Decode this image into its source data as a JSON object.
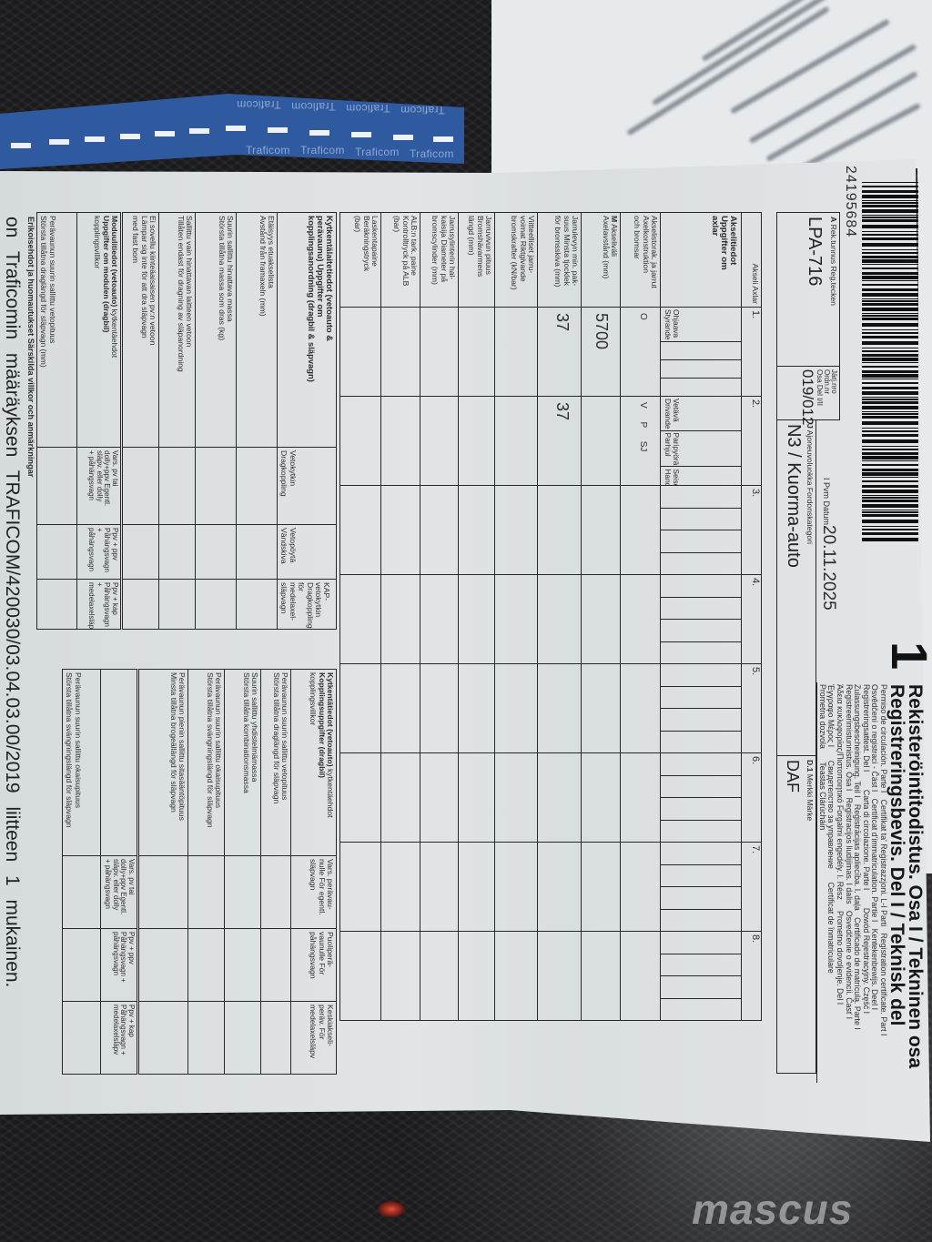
{
  "banner": {
    "text": "Traficom",
    "color": "#2f5aa0"
  },
  "header": {
    "part_number": "1",
    "title_fi": "Rekisteröintitodistus. Osa I / Tekninen osa",
    "title_sv": "Registreringsbevis. Del I / Teknisk del",
    "translations": [
      "Permiso de circulación. Parte I   Certifikat ta' Reġistrazzjoni. L-I Parti   Registration certificate. Part I",
      "Osvědčení o registraci - Část I   Certificat d'immatriculation. Partie I   Kentekenbewijs. Deel I",
      "Registreringsattest. Del I        Carta di circolazione. Parte I        Dowód Rejestracyjny. Część I",
      "Zulassungsbescheinigung. Teil I   Reģistrācijas apliecība. I. daļa   Certificado de matrícula. Parte I",
      "Registreerimistunnistus. Osa I   Registracijos liudijimas. I dalis   Osvedčenie o evidencii. Časť I",
      "Άδεια κυκλοφορίας/Πιστοποιητικό Forgalmi engedély. I. Rész     Prometno dovoljenje. Del I",
      "Έγγραφο Μέρος I      Свидетелство за управление      Certificat de înmatriculare",
      "Prometna dozvola      Teastas Clárúcháin"
    ],
    "serial_number": "24195684",
    "date_label": "I Pvm Datum",
    "date": "20.11.2025"
  },
  "id_fields": {
    "registration": {
      "code": "A",
      "label": "Rek.tunnus Reg.tecken",
      "value": "LPA-716"
    },
    "order_number": {
      "label": "Järj.nro Ordn.nr\nOsa Del I/II",
      "value": "019/012"
    },
    "category": {
      "code": "J",
      "label": "Ajoneuvoluokka Fordonskategori",
      "value": "N3 / Kuorma-auto"
    },
    "make": {
      "code": "D.1",
      "label": "Merkki Märke",
      "value": "DAF"
    }
  },
  "axle_table": {
    "header_label": "Akseli Axlar",
    "section_title": "Akselitiedot\nUppgifter om\naxlar",
    "axles": [
      "1.",
      "2.",
      "3.",
      "4.",
      "5.",
      "6.",
      "7.",
      "8."
    ],
    "axle_attributes": [
      [
        "Ohjaava\nStyrande",
        "",
        "",
        ""
      ],
      [
        "Vetävä\nDrivande",
        "Paripyörä\nParhjul",
        "Seisontajarru\nHandbroms",
        ""
      ],
      [
        "",
        "",
        "",
        ""
      ],
      [
        "",
        "",
        "",
        ""
      ],
      [
        "",
        "",
        "",
        ""
      ],
      [
        "",
        "",
        "",
        ""
      ],
      [
        "",
        "",
        "",
        ""
      ],
      [
        "",
        "",
        "",
        ""
      ]
    ],
    "rows": [
      {
        "code": "",
        "label": "Akselistorak. ja jarrut\nAxelkonstruktion\noch bromsar",
        "values": [
          "O",
          "V  P  SJ",
          "",
          "",
          "",
          "",
          "",
          ""
        ]
      },
      {
        "code": "M",
        "label": "Akseliväli\nAxelavstånd (mm)",
        "values": [
          "5700",
          "",
          "",
          "",
          "",
          "",
          "",
          ""
        ]
      },
      {
        "code": "",
        "label": "Jarrulevyn min. pak-\nsuus Minsta tjocklek\nför bromsskiva (mm)",
        "values": [
          "37",
          "37",
          "",
          "",
          "",
          "",
          "",
          ""
        ]
      },
      {
        "code": "",
        "label": "Viitteelliset jarru-\nvoimat Riktgivande\nbromskrafter (kN/bar)",
        "values": [
          "",
          "",
          "",
          "",
          "",
          "",
          "",
          ""
        ]
      },
      {
        "code": "",
        "label": "Jarruvivun pituus\nBromshävarmens\nlängd (mm)",
        "values": [
          "",
          "",
          "",
          "",
          "",
          "",
          "",
          ""
        ]
      },
      {
        "code": "",
        "label": "Jarrusylinterin hal-\nkaisija Diameter på\nbromscylinder (mm)",
        "values": [
          "",
          "",
          "",
          "",
          "",
          "",
          "",
          ""
        ]
      },
      {
        "code": "",
        "label": "ALB:n tark. paine\nKontrolltryck på ALB\n(bar)",
        "values": [
          "",
          "",
          "",
          "",
          "",
          "",
          "",
          ""
        ]
      },
      {
        "code": "",
        "label": "Laskentapaine\nBeräkningstryck\n(bar)",
        "values": [
          "",
          "",
          "",
          "",
          "",
          "",
          "",
          ""
        ]
      }
    ]
  },
  "coupling_device": {
    "title": "Kytkentälaitetiedot (vetoauto &\nperävaunu) Uppgifter om\nkopplingsanordning (dragbil & släpvagn)",
    "columns": [
      "Vetokytkin\nDragkoppling",
      "Vetopöytä\nVändskiva",
      "KAP-vetokytkin\nDragkoppling\nför medelaxel-\nsläpvagn"
    ],
    "rows": [
      "Etäisyys etuakselista\nAvstånd från framaxeln (mm)",
      "Suurin sallittu hinattava massa\nStörsta tillåtna massa som dras (kg)",
      "Sallittu vain hinattavan laitteen vetoon\nTillåten endast för dragning av släpanordning",
      "Ei sovellu kiinteäaisaisen pv:n vetoon\nLämpar sig inte för att dra släpvagn\nmed fast bom"
    ]
  },
  "module_data": {
    "title_bold": "Moduulitiedot (vetoauto)",
    "title_rest": " kytkentäehdot",
    "title_bold2": "Uppgifter om modulen (dragbil)",
    "title_rest2": "kopplingsvillkor",
    "columns": [
      "Vars. pv tai\ndolly+ppv Egentl.\nsläpv. eller dolly\n+ påhängsvagn",
      "Ppv + ppv\nPåhängsvagn +\npåhängsvagn",
      "Ppv + kap\nPåhängsvagn +\nmedelaxelsläpv"
    ],
    "row": "Perävaunun suurin sallittu vetopituus\nStörsta tillåtna draglängd för släpvagn (mm)"
  },
  "coupling_conditions": {
    "title_bold": "Kytkentätiedot (vetoauto)",
    "title_rest": " kytkentäehdot",
    "title_bold2": "Kopplingsuppgifter (dragbil)",
    "title_rest2": "kopplingsvillkor",
    "columns": [
      "Vars. perävau-\nnulle För egentl.\nsläpvagn",
      "Puoliperä-\nvaunulle För\npåhängsvagn",
      "Keskiakseli-\nperäv. För\nmedelaxelsläpv"
    ],
    "rows": [
      "Perävaunun suurin sallittu vetopituus\nStörsta tillåtna draglängd för släpvagn",
      "Suurin sallittu yhdistelmämassa\nStörsta tillåtna kombinationsmassa",
      "Perävaunun suurin sallittu okaisupituus\nStörsta tillåtna svängningslängd för släpvagn",
      "Perävaunun pienin sallittu sitasääntöpituus\nMinsta tillåtna brogeällängd för släpvagn"
    ],
    "lower_columns": [
      "Vars. pv tai\ndolly+ppv Egentl.\nsläpv. eller dolly\n+ påhängsvagn",
      "Ppv + ppv\nPåhängsvagn +\npåhängsvagn",
      "Ppv + kap\nPåhängsvagn +\nmedelaxelsläpv"
    ],
    "lower_row": "Perävaunun suurin sallittu okaisupituus\nStörsta tillåtna svängningslängd för släpvagn"
  },
  "remarks_label": "Erikoisehdot ja huomautukset Särskilda villkor och anmärkningar",
  "footer_statement": "on Traficomin määräyksen TRAFICOM/420030/03.04.03.00/2019 liitteen 1 mukainen.",
  "watermark": "mascus"
}
